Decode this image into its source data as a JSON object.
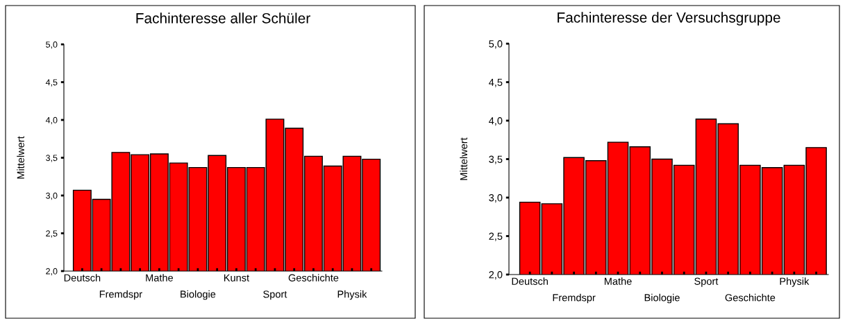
{
  "chart_data": [
    {
      "type": "bar",
      "title": "Fachinteresse aller Schüler",
      "ylabel": "Mittelwert",
      "categories": [
        "Deutsch",
        null,
        "Fremdspr",
        null,
        "Mathe",
        null,
        "Biologie",
        null,
        "Kunst",
        null,
        "Sport",
        null,
        "Geschichte",
        null,
        "Physik",
        null
      ],
      "values": [
        3.07,
        2.95,
        3.57,
        3.54,
        3.55,
        3.43,
        3.37,
        3.53,
        3.37,
        3.37,
        4.01,
        3.89,
        3.52,
        3.39,
        3.52,
        3.48
      ],
      "color": "#ff0000",
      "ylim": [
        2.0,
        5.0
      ],
      "yticks": [
        {
          "value": 2.0,
          "label": "2,0"
        },
        {
          "value": 2.5,
          "label": "2,5"
        },
        {
          "value": 3.0,
          "label": "3,0"
        },
        {
          "value": 3.5,
          "label": "3,5"
        },
        {
          "value": 4.0,
          "label": "4,0"
        },
        {
          "value": 4.5,
          "label": "4,5"
        },
        {
          "value": 5.0,
          "label": "5,0"
        }
      ],
      "grid": false,
      "legend": false
    },
    {
      "type": "bar",
      "title": "Fachinteresse der Versuchsgruppe",
      "ylabel": "Mittelwert",
      "categories": [
        "Deutsch",
        null,
        "Fremdspr",
        null,
        "Mathe",
        null,
        "Biologie",
        null,
        "Sport",
        null,
        "Geschichte",
        null,
        "Physik",
        null
      ],
      "values": [
        2.94,
        2.92,
        3.52,
        3.48,
        3.72,
        3.66,
        3.5,
        3.42,
        4.02,
        3.96,
        3.42,
        3.39,
        3.42,
        3.65
      ],
      "color": "#ff0000",
      "ylim": [
        2.0,
        5.0
      ],
      "yticks": [
        {
          "value": 2.0,
          "label": "2,0"
        },
        {
          "value": 2.5,
          "label": "2,5"
        },
        {
          "value": 3.0,
          "label": "3,0"
        },
        {
          "value": 3.5,
          "label": "3,5"
        },
        {
          "value": 4.0,
          "label": "4,0"
        },
        {
          "value": 4.5,
          "label": "4,5"
        },
        {
          "value": 5.0,
          "label": "5,0"
        }
      ],
      "grid": false,
      "legend": false
    }
  ]
}
